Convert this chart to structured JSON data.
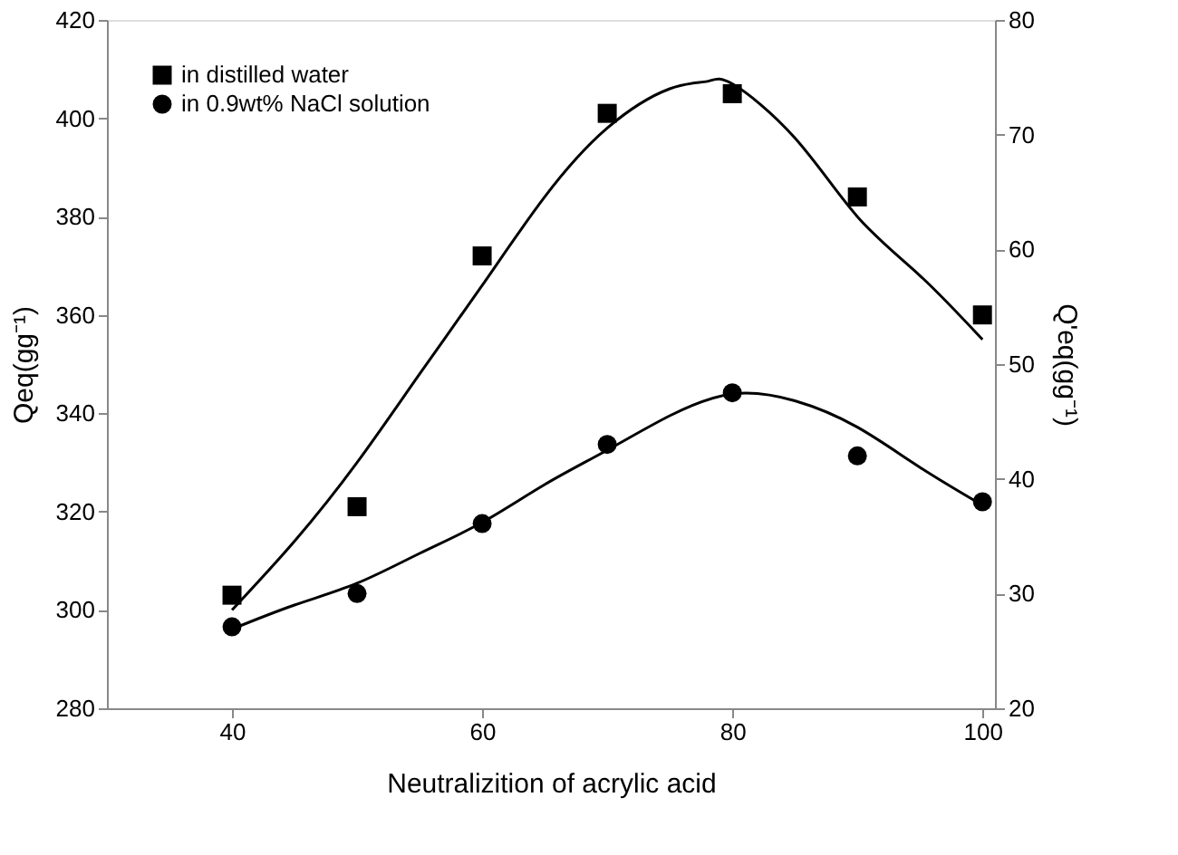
{
  "chart_data": {
    "type": "scatter",
    "xlabel": "Neutralizition of acrylic acid",
    "ylabel": "Qeq(gg⁻¹)",
    "y2label": "Q'eq(gg⁻¹)",
    "xlim": [
      30,
      101
    ],
    "xticks": [
      40,
      60,
      80,
      100
    ],
    "ylim": [
      280,
      420
    ],
    "yticks": [
      280,
      300,
      320,
      340,
      360,
      380,
      400,
      420
    ],
    "y2lim": [
      20,
      80
    ],
    "y2ticks": [
      20,
      30,
      40,
      50,
      60,
      70,
      80
    ],
    "grid": false,
    "legend": "top left",
    "series": [
      {
        "name": "in distilled water",
        "marker": "square",
        "color": "#000000",
        "x": [
          40,
          50,
          60,
          70,
          80,
          90,
          100
        ],
        "values": [
          303,
          321,
          372,
          401,
          405,
          384,
          360
        ]
      },
      {
        "name": "in 0.9wt% NaCl solution",
        "marker": "circle",
        "color": "#000000",
        "axis": "y2",
        "x": [
          40,
          50,
          60,
          70,
          80,
          90,
          100
        ],
        "values": [
          27.1,
          30,
          36.1,
          43,
          47.5,
          42,
          38
        ]
      },
      {
        "type": "line",
        "line_style": "solid",
        "color": "#000000",
        "x": [
          40,
          45,
          50,
          55,
          60,
          65,
          70,
          75,
          78,
          80,
          85,
          90,
          95,
          100
        ],
        "values": [
          300,
          314,
          330,
          348,
          366,
          384,
          398,
          406,
          407.5,
          407,
          396,
          380,
          368,
          355
        ]
      },
      {
        "type": "line",
        "line_style": "solid",
        "color": "#000000",
        "axis": "y2",
        "x": [
          40,
          45,
          50,
          55,
          60,
          65,
          70,
          75,
          80,
          85,
          90,
          95,
          100
        ],
        "values": [
          26.9,
          29,
          30.9,
          33.5,
          36.2,
          39.5,
          42.5,
          45.5,
          47.4,
          46.8,
          44.5,
          41,
          37.7
        ]
      }
    ]
  }
}
